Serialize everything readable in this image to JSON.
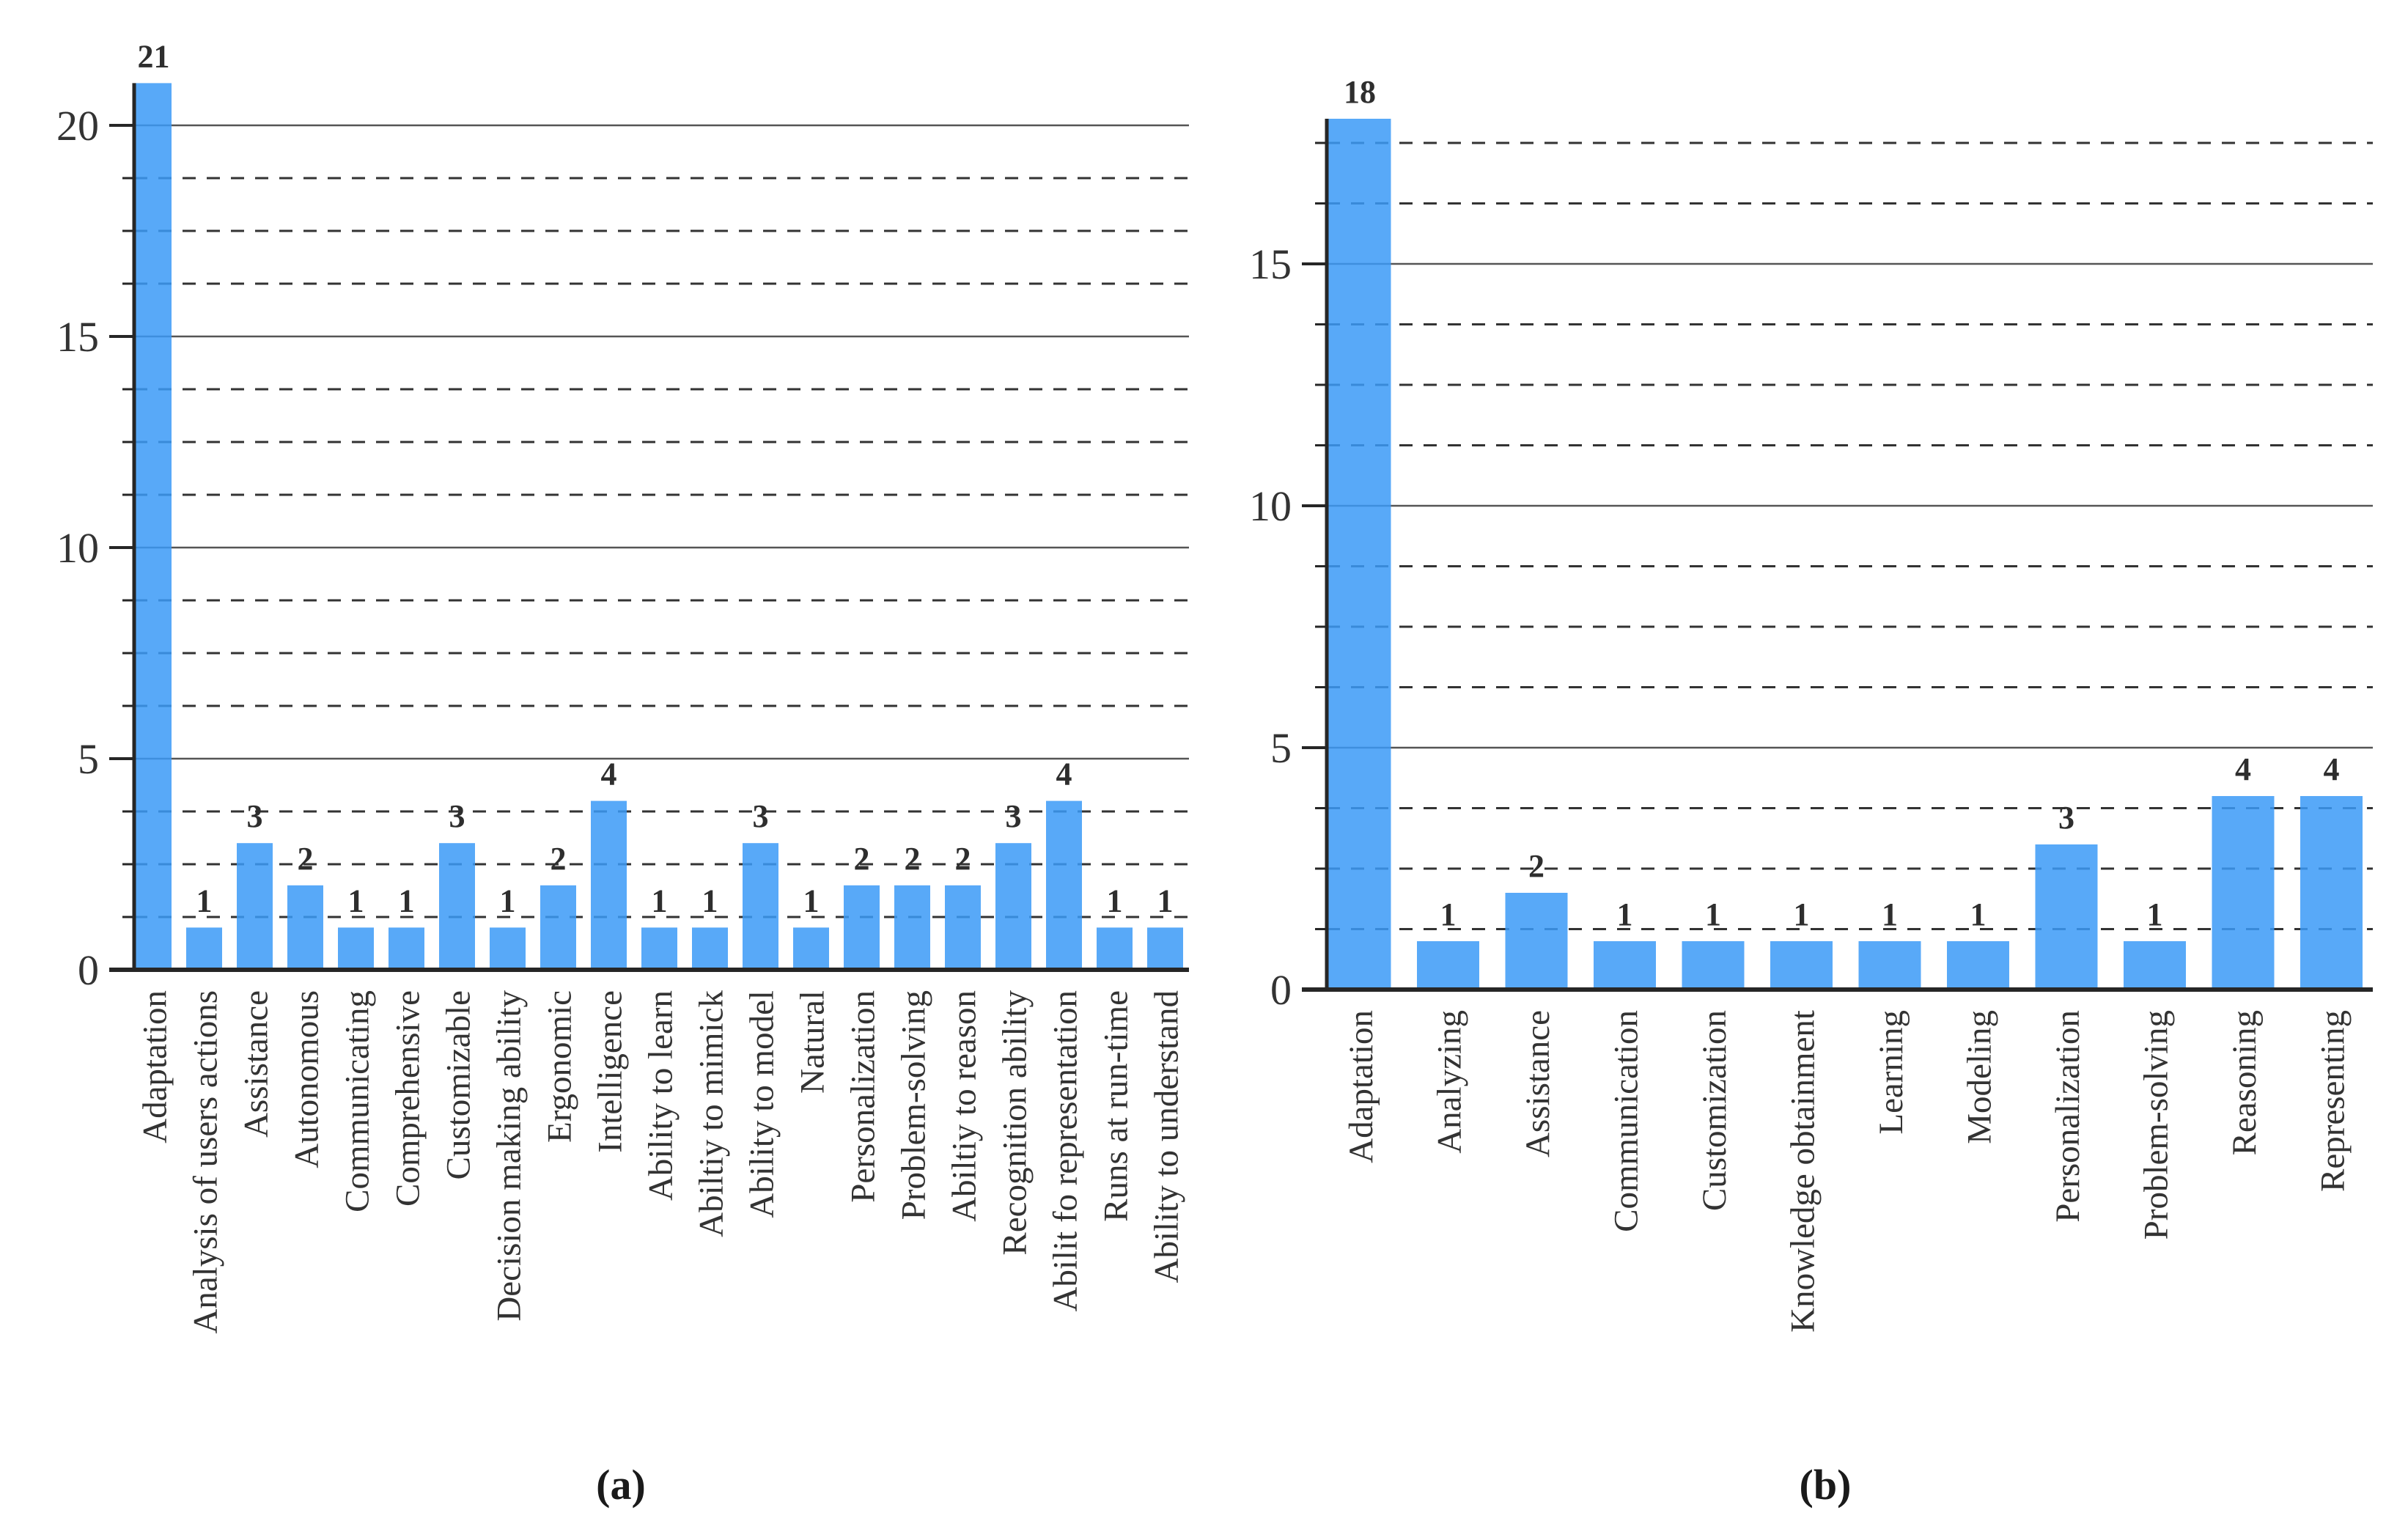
{
  "figure": {
    "captions": {
      "a": "(a)",
      "b": "(b)"
    },
    "colors": {
      "bar": "#3b9af7",
      "axis": "#262626",
      "grid_major": "#555555",
      "grid_minor": "#333333",
      "text": "#333333"
    }
  },
  "chart_data": [
    {
      "type": "bar",
      "panel": "a",
      "title": "",
      "xlabel": "",
      "ylabel": "",
      "categories": [
        "Adaptation",
        "Analysis of users actions",
        "Assistance",
        "Autonomous",
        "Communicating",
        "Comprehensive",
        "Customizable",
        "Decision making ability",
        "Ergonomic",
        "Intelligence",
        "Ability to learn",
        "Abiltiy to mimick",
        "Ability to model",
        "Natural",
        "Personalization",
        "Problem-solving",
        "Abiltiy to reason",
        "Recognition ability",
        "Abilit fo representation",
        "Runs at run-time",
        "Ability to understand"
      ],
      "values": [
        21,
        1,
        3,
        2,
        1,
        1,
        3,
        1,
        2,
        4,
        1,
        1,
        3,
        1,
        2,
        2,
        2,
        3,
        4,
        1,
        1
      ],
      "ylim": [
        0,
        21
      ],
      "yticks": [
        0,
        5,
        10,
        15,
        20
      ],
      "minor_grid_step": 1.25,
      "grid": "solid major lines every 5, dashed minor lines every 1.25",
      "legend": "none",
      "bar_value_labels_shown": true,
      "x_labels_rotation_deg": 90
    },
    {
      "type": "bar",
      "panel": "b",
      "title": "",
      "xlabel": "",
      "ylabel": "",
      "categories": [
        "Adaptation",
        "Analyzing",
        "Assistance",
        "Communication",
        "Customization",
        "Knowledge obtainment",
        "Learning",
        "Modeling",
        "Personalization",
        "Problem-solving",
        "Reasoning",
        "Representing"
      ],
      "values": [
        18,
        1,
        2,
        1,
        1,
        1,
        1,
        1,
        3,
        1,
        4,
        4
      ],
      "ylim": [
        0,
        18
      ],
      "yticks": [
        0,
        5,
        10,
        15
      ],
      "minor_grid_step": 1.25,
      "grid": "solid major lines every 5, dashed minor lines every 1.25",
      "legend": "none",
      "bar_value_labels_shown": true,
      "x_labels_rotation_deg": 90
    }
  ]
}
